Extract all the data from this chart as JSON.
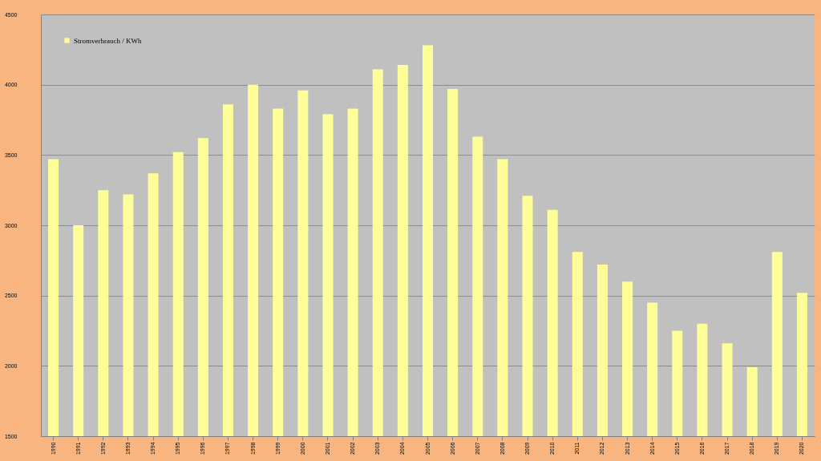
{
  "chart_data": {
    "type": "bar",
    "categories": [
      "1990",
      "1991",
      "1992",
      "1993",
      "1994",
      "1995",
      "1996",
      "1997",
      "1998",
      "1999",
      "2000",
      "2001",
      "2002",
      "2003",
      "2004",
      "2005",
      "2006",
      "2007",
      "2008",
      "2009",
      "2010",
      "2011",
      "2012",
      "2013",
      "2014",
      "2015",
      "2016",
      "2017",
      "2018",
      "2019",
      "2020"
    ],
    "series": [
      {
        "name": "Stromverbrauch / KWh",
        "color": "#ffff99",
        "values": [
          3470,
          3000,
          3250,
          3220,
          3370,
          3520,
          3620,
          3860,
          4000,
          3830,
          3960,
          3790,
          3830,
          4110,
          4140,
          4280,
          3970,
          3630,
          3470,
          3210,
          3110,
          2810,
          2720,
          2600,
          2450,
          2250,
          2300,
          2160,
          1990,
          2810,
          2520
        ]
      }
    ],
    "ylim": [
      1500,
      4500
    ],
    "yticks": [
      1500,
      2000,
      2500,
      3000,
      3500,
      4000,
      4500
    ],
    "grid": "y",
    "legend": "top left"
  }
}
